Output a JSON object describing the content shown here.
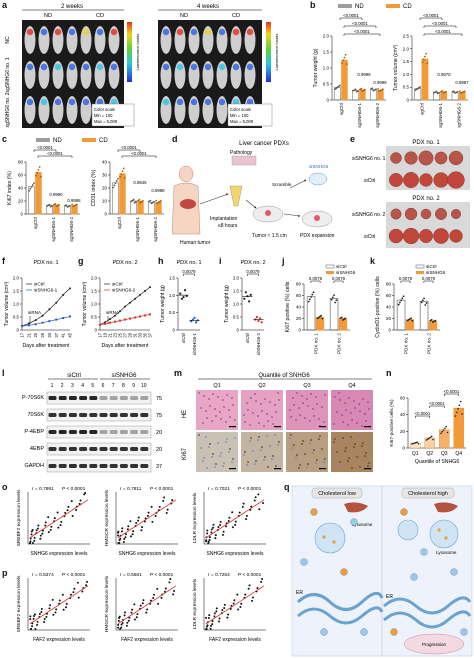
{
  "figure": {
    "panel_letters": [
      "a",
      "b",
      "c",
      "d",
      "e",
      "f",
      "g",
      "h",
      "i",
      "j",
      "k",
      "l",
      "m",
      "n",
      "o",
      "p",
      "q"
    ]
  },
  "panel_a": {
    "groups": [
      "2 weeks",
      "4 weeks"
    ],
    "cols": [
      "ND",
      "CD"
    ],
    "rows": [
      "NC",
      "sgSNHG6 no. 1",
      "sgSNHG6 no. 2"
    ],
    "colorbar_label": "Luminescence counts",
    "scale_text": [
      "Color scale",
      "Min = 100",
      "Max = 5,000"
    ],
    "scale_text2": [
      "Color scale",
      "Min = 100",
      "Max = 5,000"
    ]
  },
  "panel_b": {
    "legend": [
      "ND",
      "CD"
    ],
    "colors": {
      "ND": "#9e9e9e",
      "CD": "#f39a38"
    },
    "charts": [
      {
        "ylabel": "Tumor weight (g)",
        "yticks": [
          "0",
          "0.5",
          "1.0",
          "1.5",
          "2.0"
        ],
        "xcats": [
          "sgCtrl",
          "sgSNHG6-1",
          "sgSNHG6-2"
        ],
        "pvalues": [
          "<0.0001",
          "<0.0001",
          "<0.0001",
          "0.9999",
          "0.9999"
        ]
      },
      {
        "ylabel": "Tumor volume (cm³)",
        "yticks": [
          "0",
          "0.5",
          "1.0",
          "1.5",
          "2.0",
          "2.5"
        ],
        "xcats": [
          "sgCtrl",
          "sgSNHG6-1",
          "sgSNHG6-2"
        ],
        "pvalues": [
          "<0.0001",
          "<0.0001",
          "<0.0001",
          "0.9970",
          "0.9987"
        ]
      }
    ]
  },
  "panel_c": {
    "legend": [
      "ND",
      "CD"
    ],
    "charts": [
      {
        "ylabel": "Ki67 index (%)",
        "yticks": [
          "0",
          "20",
          "40",
          "60",
          "80"
        ],
        "xcats": [
          "sgCtrl",
          "sgSNHG6-1",
          "sgSNHG6-2"
        ],
        "pvalues": [
          "<0.0001",
          "<0.0001",
          "0.9990",
          "0.9998"
        ]
      },
      {
        "ylabel": "CD31 index (%)",
        "yticks": [
          "0",
          "10",
          "20",
          "30",
          "40"
        ],
        "xcats": [
          "sgCtrl",
          "sgSNHG6-1",
          "sgSNHG6-2"
        ],
        "pvalues": [
          "<0.0001",
          "<0.0001",
          "0.9845",
          "0.9988"
        ]
      }
    ]
  },
  "panel_d": {
    "title": "Liver cancer PDXs",
    "labels": [
      "Pathology",
      "Scramble",
      "siSNHG6",
      "Human tumor",
      "Implantation",
      "≤8 hours",
      "Tumor ≈ 1.5 cm",
      "PDX expansion"
    ]
  },
  "panel_e": {
    "pdx1": "PDX no. 1",
    "pdx2": "PDX no. 2",
    "labels": [
      "siSNHG6 no. 1",
      "siCtrl",
      "siSNHG6 no. 2",
      "siCtrl"
    ]
  },
  "panel_f": {
    "title": "PDX no. 1",
    "legend": [
      "siCtrl",
      "siSNHG6-1"
    ],
    "ylabel": "Tumor volume (cm³)",
    "xlabel": "Days after treatment",
    "annot": "siRNA",
    "xticks": [
      "17",
      "21",
      "25",
      "29",
      "33",
      "37",
      "41",
      "45"
    ],
    "yticks": [
      "0",
      "0.5",
      "1.0",
      "1.5",
      "2.0"
    ]
  },
  "panel_g": {
    "title": "PDX no. 2",
    "legend": [
      "siCtrl",
      "siSNHG6-2"
    ],
    "ylabel": "Tumor volume (cm³)",
    "xlabel": "Days after treatment",
    "annot": "siRNA",
    "xticks": [
      "17",
      "19",
      "21",
      "23",
      "25",
      "27",
      "29",
      "31",
      "33",
      "35",
      "37"
    ],
    "yticks": [
      "0",
      "0.5",
      "1.0",
      "1.5",
      "2.0"
    ]
  },
  "panel_h": {
    "title": "PDX no. 1",
    "ylabel": "Tumor weight (g)",
    "p": "0.0079",
    "xcats": [
      "siCtrl",
      "siSNHG6-1"
    ],
    "yticks": [
      "0",
      "0.5",
      "1.0",
      "1.5"
    ]
  },
  "panel_i": {
    "title": "PDX no. 2",
    "ylabel": "Tumor weight (g)",
    "p": "0.0079",
    "xcats": [
      "siCtrl",
      "siSNHG6-2"
    ],
    "yticks": [
      "0",
      "0.5",
      "1.0",
      "1.5",
      "2.0"
    ]
  },
  "panel_j": {
    "legend": [
      "siCtrl",
      "siSNHG6"
    ],
    "ylabel": "Ki67 positive (%) cells",
    "p": [
      "0.0079",
      "0.0079"
    ],
    "xcats": [
      "PDX no. 1",
      "PDX no. 2"
    ],
    "yticks": [
      "0",
      "20",
      "40",
      "60",
      "80"
    ]
  },
  "panel_k": {
    "legend": [
      "siCtrl",
      "siSNHG6"
    ],
    "ylabel": "CyclinD1-positive (%) cells",
    "p": [
      "0.0079",
      "0.0079"
    ],
    "xcats": [
      "PDX no. 1",
      "PDX no. 2"
    ],
    "yticks": [
      "0",
      "20",
      "40",
      "60",
      "80"
    ]
  },
  "panel_l": {
    "groups": [
      "siCtrl",
      "siSNHG6"
    ],
    "lanes": [
      "1",
      "2",
      "3",
      "4",
      "5",
      "6",
      "7",
      "8",
      "9",
      "10"
    ],
    "rows": [
      "P-70S6K",
      "70S6K",
      "P-4EBP",
      "4EBP",
      "GAPDH"
    ],
    "mw": [
      "75",
      "75",
      "20",
      "20",
      "37"
    ]
  },
  "panel_m": {
    "title": "Quantile of SNHG6",
    "cols": [
      "Q1",
      "Q2",
      "Q3",
      "Q4"
    ],
    "rows": [
      "HE",
      "Ki67"
    ]
  },
  "panel_n": {
    "ylabel": "Ki67-positive cells (%)",
    "xlabel": "Quantile of SNHG6",
    "xcats": [
      "Q1",
      "Q2",
      "Q3",
      "Q4"
    ],
    "yticks": [
      "0",
      "20",
      "40",
      "60"
    ],
    "pvalues": [
      "<0.0001",
      "<0.0001",
      "<0.0001"
    ]
  },
  "panel_o": {
    "charts": [
      {
        "r": "r = 0.7891",
        "p": "P < 0.0001",
        "ylabel": "SREBF2 expression levels",
        "xlabel": "SNHG6 expression levels"
      },
      {
        "r": "r = 0.7811",
        "p": "P < 0.0001",
        "ylabel": "HMGCR expression levels",
        "xlabel": "SNHG6 expression levels"
      },
      {
        "r": "r = 0.7021",
        "p": "P < 0.0001",
        "ylabel": "LDLR expression levels",
        "xlabel": "SNHG6 expression levels"
      }
    ]
  },
  "panel_p": {
    "charts": [
      {
        "r": "r = 0.5374",
        "p": "P < 0.0001",
        "ylabel": "SREBF2 expression levels",
        "xlabel": "FAF2 expression levels"
      },
      {
        "r": "r = 0.5681",
        "p": "P < 0.0001",
        "ylabel": "HMGCR expression levels",
        "xlabel": "FAF2 expression levels"
      },
      {
        "r": "r = 0.7254",
        "p": "P < 0.0001",
        "ylabel": "LDLR expression levels",
        "xlabel": "FAF2 expression levels"
      }
    ]
  },
  "panel_q": {
    "left": "Cholesterol low",
    "right": "Cholesterol high",
    "labels": [
      "Lysosome",
      "Lysosome",
      "ER",
      "ER",
      "Progression"
    ]
  }
}
